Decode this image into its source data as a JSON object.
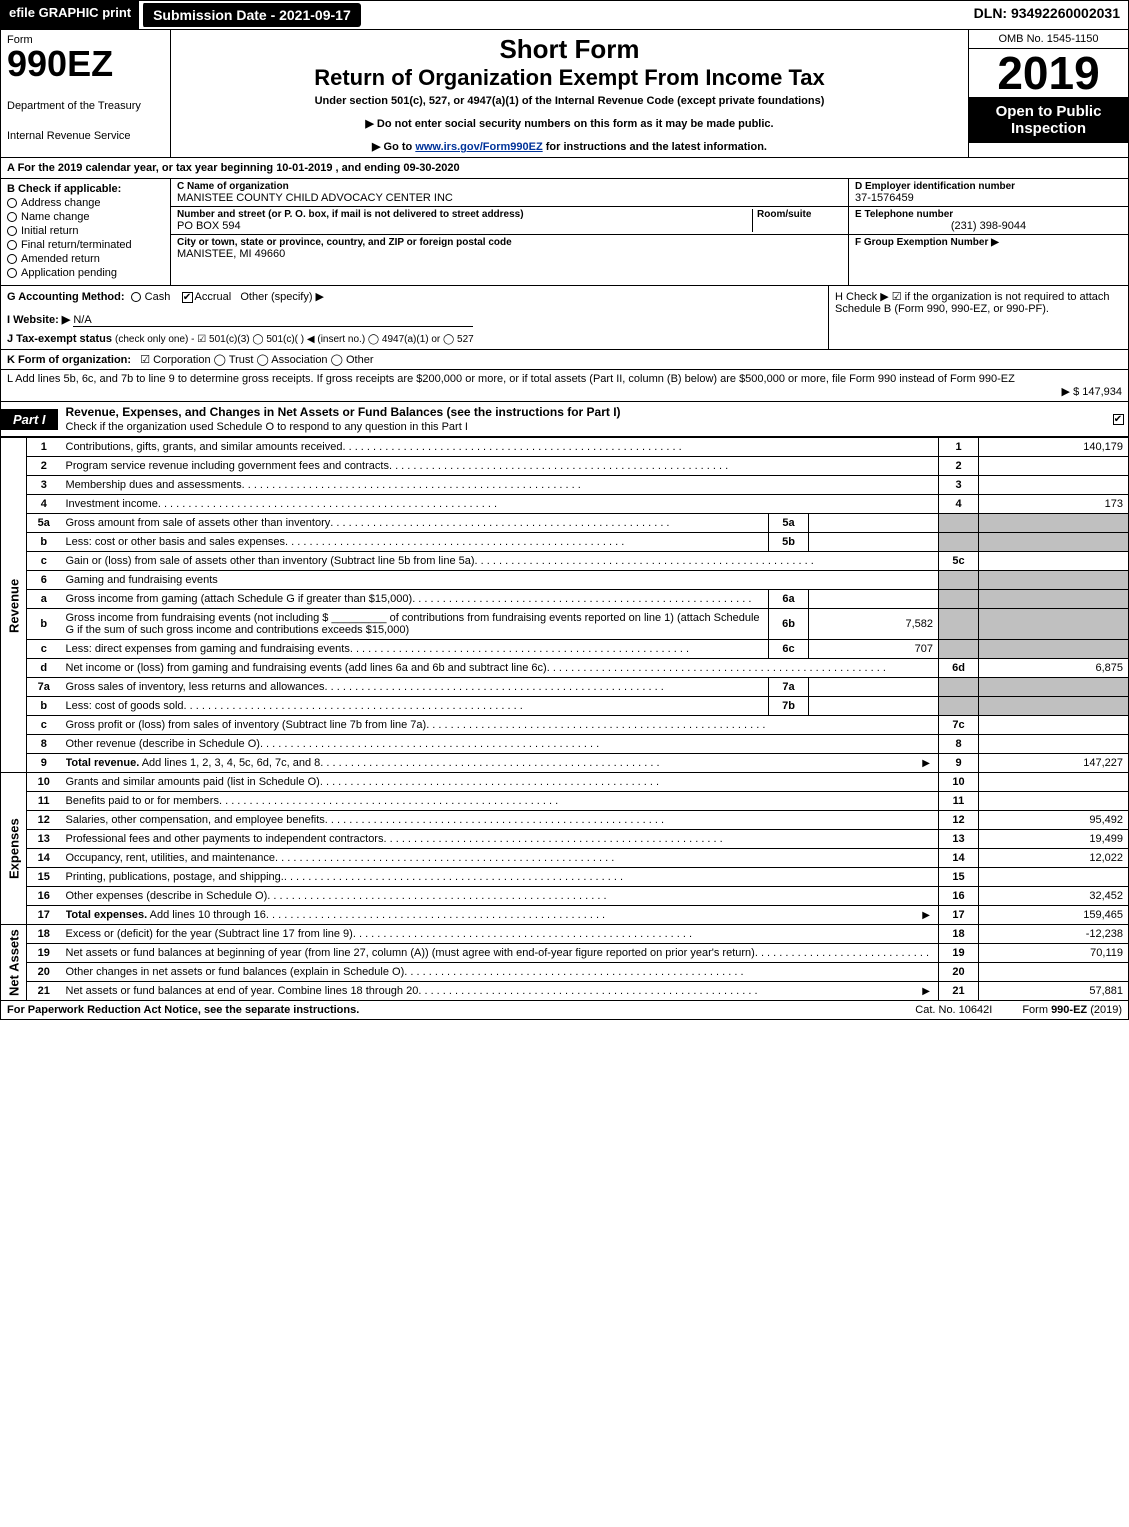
{
  "topbar": {
    "efile": "efile GRAPHIC",
    "print": "print",
    "subdate_label": "Submission Date - 2021-09-17",
    "dln": "DLN: 93492260002031"
  },
  "header": {
    "form_word": "Form",
    "form_num": "990EZ",
    "dept1": "Department of the Treasury",
    "dept2": "Internal Revenue Service",
    "shortform": "Short Form",
    "title_main": "Return of Organization Exempt From Income Tax",
    "under": "Under section 501(c), 527, or 4947(a)(1) of the Internal Revenue Code (except private foundations)",
    "note1": "▶ Do not enter social security numbers on this form as it may be made public.",
    "note2_pre": "▶ Go to ",
    "note2_link": "www.irs.gov/Form990EZ",
    "note2_post": " for instructions and the latest information.",
    "omb": "OMB No. 1545-1150",
    "year": "2019",
    "inspect": "Open to Public Inspection"
  },
  "period": "A  For the 2019 calendar year, or tax year beginning 10-01-2019 , and ending 09-30-2020",
  "entity": {
    "b_label": "B  Check if applicable:",
    "checks": [
      "Address change",
      "Name change",
      "Initial return",
      "Final return/terminated",
      "Amended return",
      "Application pending"
    ],
    "c_label": "C Name of organization",
    "c_name": "MANISTEE COUNTY CHILD ADVOCACY CENTER INC",
    "addr_label": "Number and street (or P. O. box, if mail is not delivered to street address)",
    "room_label": "Room/suite",
    "addr": "PO BOX 594",
    "city_label": "City or town, state or province, country, and ZIP or foreign postal code",
    "city": "MANISTEE, MI  49660",
    "d_label": "D Employer identification number",
    "d_val": "37-1576459",
    "e_label": "E Telephone number",
    "e_val": "(231) 398-9044",
    "f_label": "F Group Exemption Number  ▶"
  },
  "g": {
    "label": "G Accounting Method:",
    "cash": "Cash",
    "accrual": "Accrual",
    "other": "Other (specify) ▶"
  },
  "h": {
    "text": "H  Check ▶  ☑  if the organization is not required to attach Schedule B (Form 990, 990-EZ, or 990-PF)."
  },
  "i": {
    "label": "I Website: ▶",
    "val": "N/A"
  },
  "j": {
    "label": "J Tax-exempt status",
    "tail": "(check only one) -  ☑ 501(c)(3)  ◯ 501(c)( )  ◀ (insert no.)  ◯ 4947(a)(1) or  ◯ 527"
  },
  "k": {
    "label": "K Form of organization:",
    "opts": "☑ Corporation   ◯ Trust   ◯ Association   ◯ Other"
  },
  "l": {
    "text": "L Add lines 5b, 6c, and 7b to line 9 to determine gross receipts. If gross receipts are $200,000 or more, or if total assets (Part II, column (B) below) are $500,000 or more, file Form 990 instead of Form 990-EZ",
    "amt": "▶ $ 147,934"
  },
  "part1": {
    "badge": "Part I",
    "title": "Revenue, Expenses, and Changes in Net Assets or Fund Balances (see the instructions for Part I)",
    "sub": "Check if the organization used Schedule O to respond to any question in this Part I"
  },
  "sections": {
    "revenue": "Revenue",
    "expenses": "Expenses",
    "netassets": "Net Assets"
  },
  "rows": [
    {
      "n": "1",
      "d": "Contributions, gifts, grants, and similar amounts received",
      "rn": "1",
      "rv": "140,179"
    },
    {
      "n": "2",
      "d": "Program service revenue including government fees and contracts",
      "rn": "2",
      "rv": ""
    },
    {
      "n": "3",
      "d": "Membership dues and assessments",
      "rn": "3",
      "rv": ""
    },
    {
      "n": "4",
      "d": "Investment income",
      "rn": "4",
      "rv": "173"
    },
    {
      "n": "5a",
      "d": "Gross amount from sale of assets other than inventory",
      "sn": "5a",
      "sv": "",
      "shadeR": true
    },
    {
      "n": "b",
      "d": "Less: cost or other basis and sales expenses",
      "sn": "5b",
      "sv": "",
      "shadeR": true
    },
    {
      "n": "c",
      "d": "Gain or (loss) from sale of assets other than inventory (Subtract line 5b from line 5a)",
      "rn": "5c",
      "rv": ""
    },
    {
      "n": "6",
      "d": "Gaming and fundraising events",
      "shadeR": true,
      "noVal": true
    },
    {
      "n": "a",
      "d": "Gross income from gaming (attach Schedule G if greater than $15,000)",
      "sn": "6a",
      "sv": "",
      "shadeR": true
    },
    {
      "n": "b",
      "d": "Gross income from fundraising events (not including $ _________ of contributions from fundraising events reported on line 1) (attach Schedule G if the sum of such gross income and contributions exceeds $15,000)",
      "sn": "6b",
      "sv": "7,582",
      "shadeR": true
    },
    {
      "n": "c",
      "d": "Less: direct expenses from gaming and fundraising events",
      "sn": "6c",
      "sv": "707",
      "shadeR": true
    },
    {
      "n": "d",
      "d": "Net income or (loss) from gaming and fundraising events (add lines 6a and 6b and subtract line 6c)",
      "rn": "6d",
      "rv": "6,875"
    },
    {
      "n": "7a",
      "d": "Gross sales of inventory, less returns and allowances",
      "sn": "7a",
      "sv": "",
      "shadeR": true
    },
    {
      "n": "b",
      "d": "Less: cost of goods sold",
      "sn": "7b",
      "sv": "",
      "shadeR": true
    },
    {
      "n": "c",
      "d": "Gross profit or (loss) from sales of inventory (Subtract line 7b from line 7a)",
      "rn": "7c",
      "rv": ""
    },
    {
      "n": "8",
      "d": "Other revenue (describe in Schedule O)",
      "rn": "8",
      "rv": ""
    },
    {
      "n": "9",
      "d": "Total revenue. Add lines 1, 2, 3, 4, 5c, 6d, 7c, and 8",
      "rn": "9",
      "rv": "147,227",
      "bold": true,
      "arrow": true
    }
  ],
  "exp_rows": [
    {
      "n": "10",
      "d": "Grants and similar amounts paid (list in Schedule O)",
      "rn": "10",
      "rv": ""
    },
    {
      "n": "11",
      "d": "Benefits paid to or for members",
      "rn": "11",
      "rv": ""
    },
    {
      "n": "12",
      "d": "Salaries, other compensation, and employee benefits",
      "rn": "12",
      "rv": "95,492"
    },
    {
      "n": "13",
      "d": "Professional fees and other payments to independent contractors",
      "rn": "13",
      "rv": "19,499"
    },
    {
      "n": "14",
      "d": "Occupancy, rent, utilities, and maintenance",
      "rn": "14",
      "rv": "12,022"
    },
    {
      "n": "15",
      "d": "Printing, publications, postage, and shipping.",
      "rn": "15",
      "rv": ""
    },
    {
      "n": "16",
      "d": "Other expenses (describe in Schedule O)",
      "rn": "16",
      "rv": "32,452"
    },
    {
      "n": "17",
      "d": "Total expenses. Add lines 10 through 16",
      "rn": "17",
      "rv": "159,465",
      "bold": true,
      "arrow": true
    }
  ],
  "na_rows": [
    {
      "n": "18",
      "d": "Excess or (deficit) for the year (Subtract line 17 from line 9)",
      "rn": "18",
      "rv": "-12,238"
    },
    {
      "n": "19",
      "d": "Net assets or fund balances at beginning of year (from line 27, column (A)) (must agree with end-of-year figure reported on prior year's return)",
      "rn": "19",
      "rv": "70,119"
    },
    {
      "n": "20",
      "d": "Other changes in net assets or fund balances (explain in Schedule O)",
      "rn": "20",
      "rv": ""
    },
    {
      "n": "21",
      "d": "Net assets or fund balances at end of year. Combine lines 18 through 20",
      "rn": "21",
      "rv": "57,881",
      "arrow": true
    }
  ],
  "footer": {
    "left": "For Paperwork Reduction Act Notice, see the separate instructions.",
    "mid": "Cat. No. 10642I",
    "right": "Form 990-EZ (2019)"
  }
}
